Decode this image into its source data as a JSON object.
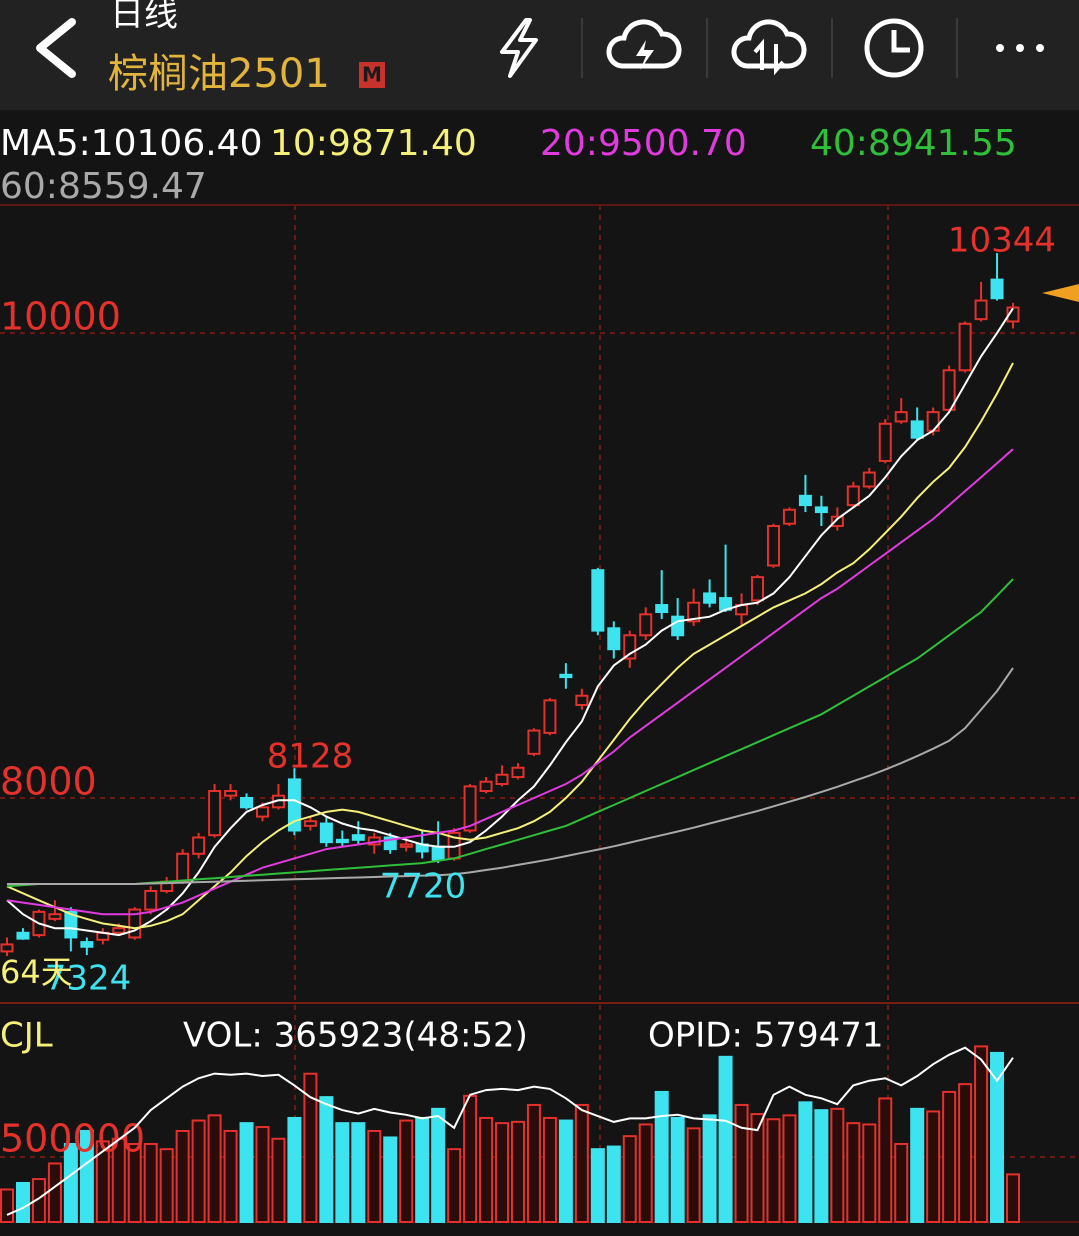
{
  "header": {
    "period": "日线",
    "symbol": "棕榈油2501",
    "badge": "M"
  },
  "chart_data": [
    {
      "type": "candlestick",
      "period_label": "64天",
      "up_color": "#e4312b",
      "down_color": "#3de3ee",
      "ylim": [
        7118,
        10551
      ],
      "yticks": [
        8000,
        10000
      ],
      "grid": true,
      "candles": [
        [
          7340,
          7400,
          7320,
          7370
        ],
        [
          7420,
          7440,
          7390,
          7395
        ],
        [
          7410,
          7520,
          7400,
          7510
        ],
        [
          7480,
          7560,
          7470,
          7500
        ],
        [
          7510,
          7530,
          7340,
          7400
        ],
        [
          7380,
          7400,
          7324,
          7360
        ],
        [
          7390,
          7440,
          7370,
          7420
        ],
        [
          7420,
          7460,
          7410,
          7440
        ],
        [
          7400,
          7530,
          7390,
          7520
        ],
        [
          7520,
          7620,
          7500,
          7600
        ],
        [
          7600,
          7660,
          7590,
          7640
        ],
        [
          7640,
          7780,
          7630,
          7760
        ],
        [
          7760,
          7850,
          7740,
          7830
        ],
        [
          7840,
          8060,
          7830,
          8030
        ],
        [
          8010,
          8060,
          7990,
          8030
        ],
        [
          8000,
          8020,
          7950,
          7960
        ],
        [
          7920,
          7980,
          7900,
          7960
        ],
        [
          7960,
          8060,
          7950,
          8010
        ],
        [
          8080,
          8128,
          7840,
          7860
        ],
        [
          7880,
          7920,
          7860,
          7900
        ],
        [
          7890,
          7920,
          7790,
          7810
        ],
        [
          7820,
          7860,
          7790,
          7810
        ],
        [
          7840,
          7900,
          7800,
          7820
        ],
        [
          7800,
          7850,
          7760,
          7830
        ],
        [
          7830,
          7850,
          7760,
          7780
        ],
        [
          7790,
          7830,
          7770,
          7800
        ],
        [
          7800,
          7860,
          7740,
          7770
        ],
        [
          7790,
          7900,
          7720,
          7735
        ],
        [
          7740,
          7870,
          7730,
          7850
        ],
        [
          7860,
          8060,
          7850,
          8050
        ],
        [
          8030,
          8090,
          8020,
          8070
        ],
        [
          8060,
          8140,
          8050,
          8100
        ],
        [
          8090,
          8150,
          8080,
          8130
        ],
        [
          8190,
          8300,
          8180,
          8290
        ],
        [
          8280,
          8430,
          8270,
          8420
        ],
        [
          8530,
          8580,
          8470,
          8520
        ],
        [
          8400,
          8470,
          8380,
          8440
        ],
        [
          8980,
          8990,
          8700,
          8720
        ],
        [
          8730,
          8760,
          8600,
          8640
        ],
        [
          8600,
          8720,
          8560,
          8700
        ],
        [
          8700,
          8820,
          8680,
          8790
        ],
        [
          8830,
          8980,
          8770,
          8800
        ],
        [
          8780,
          8860,
          8680,
          8700
        ],
        [
          8760,
          8900,
          8740,
          8840
        ],
        [
          8880,
          8940,
          8820,
          8840
        ],
        [
          8860,
          9090,
          8800,
          8810
        ],
        [
          8790,
          8880,
          8740,
          8830
        ],
        [
          8850,
          8960,
          8830,
          8950
        ],
        [
          9000,
          9180,
          8990,
          9170
        ],
        [
          9180,
          9250,
          9170,
          9240
        ],
        [
          9300,
          9390,
          9230,
          9260
        ],
        [
          9250,
          9300,
          9170,
          9230
        ],
        [
          9170,
          9250,
          9150,
          9210
        ],
        [
          9260,
          9360,
          9250,
          9340
        ],
        [
          9340,
          9420,
          9330,
          9400
        ],
        [
          9450,
          9630,
          9440,
          9610
        ],
        [
          9620,
          9720,
          9610,
          9660
        ],
        [
          9620,
          9680,
          9540,
          9550
        ],
        [
          9580,
          9680,
          9560,
          9660
        ],
        [
          9670,
          9860,
          9660,
          9840
        ],
        [
          9840,
          10050,
          9830,
          10040
        ],
        [
          10060,
          10220,
          10050,
          10140
        ],
        [
          10230,
          10344,
          10140,
          10150
        ],
        [
          10050,
          10130,
          10020,
          10110
        ]
      ],
      "series": [
        {
          "name": "MA5",
          "legend_label": "MA5:10106.40",
          "color": "#ffffff",
          "values": [
            7560,
            7500,
            7460,
            7440,
            7440,
            7430,
            7420,
            7410,
            7430,
            7470,
            7520,
            7590,
            7680,
            7790,
            7870,
            7940,
            7970,
            7990,
            7990,
            7960,
            7920,
            7890,
            7870,
            7860,
            7840,
            7820,
            7800,
            7790,
            7790,
            7810,
            7860,
            7920,
            7990,
            8050,
            8140,
            8240,
            8330,
            8480,
            8570,
            8620,
            8660,
            8720,
            8760,
            8770,
            8780,
            8810,
            8830,
            8840,
            8880,
            8950,
            9040,
            9130,
            9200,
            9250,
            9300,
            9380,
            9470,
            9540,
            9580,
            9660,
            9780,
            9900,
            10000,
            10106.4
          ]
        },
        {
          "name": "MA10",
          "legend_label": "10:9871.40",
          "color": "#f5f07a",
          "values": [
            7620,
            7590,
            7560,
            7530,
            7500,
            7480,
            7460,
            7450,
            7440,
            7450,
            7470,
            7500,
            7560,
            7620,
            7680,
            7750,
            7810,
            7860,
            7900,
            7920,
            7940,
            7950,
            7940,
            7920,
            7900,
            7880,
            7860,
            7850,
            7830,
            7820,
            7830,
            7850,
            7870,
            7900,
            7940,
            8000,
            8070,
            8160,
            8250,
            8340,
            8420,
            8490,
            8560,
            8620,
            8660,
            8700,
            8740,
            8780,
            8820,
            8850,
            8880,
            8920,
            8970,
            9010,
            9070,
            9140,
            9210,
            9290,
            9360,
            9420,
            9510,
            9620,
            9740,
            9871.4
          ]
        },
        {
          "name": "MA20",
          "legend_label": "20:9500.70",
          "color": "#e13be0",
          "values": [
            7560,
            7550,
            7540,
            7530,
            7520,
            7510,
            7500,
            7500,
            7500,
            7510,
            7530,
            7550,
            7580,
            7610,
            7640,
            7670,
            7700,
            7720,
            7740,
            7760,
            7780,
            7790,
            7800,
            7810,
            7820,
            7830,
            7840,
            7850,
            7860,
            7880,
            7910,
            7940,
            7970,
            8000,
            8030,
            8060,
            8100,
            8150,
            8200,
            8260,
            8310,
            8360,
            8410,
            8460,
            8510,
            8560,
            8610,
            8660,
            8710,
            8760,
            8810,
            8860,
            8900,
            8950,
            9000,
            9050,
            9100,
            9150,
            9200,
            9260,
            9320,
            9380,
            9440,
            9500.7
          ]
        },
        {
          "name": "MA40",
          "legend_label": "40:8941.55",
          "color": "#2fbf3a",
          "values": [
            7620,
            7625,
            7630,
            7630,
            7630,
            7630,
            7630,
            7630,
            7630,
            7635,
            7640,
            7645,
            7650,
            7655,
            7660,
            7665,
            7670,
            7675,
            7680,
            7685,
            7690,
            7695,
            7700,
            7705,
            7710,
            7715,
            7720,
            7730,
            7740,
            7760,
            7780,
            7800,
            7820,
            7840,
            7860,
            7880,
            7910,
            7940,
            7970,
            8000,
            8030,
            8060,
            8090,
            8120,
            8150,
            8180,
            8210,
            8240,
            8270,
            8300,
            8330,
            8360,
            8400,
            8440,
            8480,
            8520,
            8560,
            8600,
            8650,
            8700,
            8750,
            8800,
            8870,
            8941.55
          ]
        },
        {
          "name": "MA60",
          "legend_label": "60:8559.47",
          "color": "#a9a9a9",
          "values": [
            7630,
            7630,
            7630,
            7630,
            7630,
            7630,
            7630,
            7630,
            7630,
            7632,
            7634,
            7636,
            7638,
            7640,
            7642,
            7644,
            7646,
            7648,
            7650,
            7652,
            7654,
            7656,
            7658,
            7660,
            7662,
            7664,
            7666,
            7668,
            7672,
            7680,
            7690,
            7700,
            7712,
            7724,
            7736,
            7750,
            7764,
            7778,
            7792,
            7808,
            7824,
            7840,
            7856,
            7872,
            7890,
            7908,
            7926,
            7944,
            7964,
            7984,
            8004,
            8026,
            8048,
            8072,
            8096,
            8122,
            8150,
            8180,
            8212,
            8246,
            8300,
            8380,
            8460,
            8559.47
          ]
        }
      ]
    },
    {
      "type": "bar",
      "title": "CJL",
      "vol_label": "VOL: 365923(48:52)",
      "oi_label": "OPID: 579471",
      "ylim": [
        0,
        1630000
      ],
      "yticks": [
        500000
      ],
      "grid": true,
      "values": [
        250000,
        300000,
        330000,
        450000,
        600000,
        700000,
        620000,
        640000,
        600000,
        600000,
        560000,
        700000,
        780000,
        820000,
        700000,
        760000,
        730000,
        640000,
        800000,
        1140000,
        960000,
        760000,
        760000,
        700000,
        650000,
        780000,
        800000,
        870000,
        560000,
        970000,
        800000,
        760000,
        770000,
        900000,
        800000,
        780000,
        900000,
        560000,
        580000,
        660000,
        750000,
        1000000,
        800000,
        720000,
        820000,
        1270000,
        900000,
        830000,
        790000,
        820000,
        920000,
        860000,
        870000,
        760000,
        750000,
        950000,
        600000,
        870000,
        850000,
        1000000,
        1060000,
        1350000,
        1300000,
        365923
      ],
      "y2lim": [
        440000,
        620000
      ],
      "series": [
        {
          "name": "OPID",
          "axis": "y2",
          "color": "#ffffff",
          "values": [
            446000,
            452000,
            460000,
            470000,
            480000,
            490000,
            500000,
            510000,
            520000,
            535000,
            545000,
            555000,
            562000,
            566000,
            565000,
            566000,
            564000,
            565000,
            556000,
            546000,
            540000,
            535000,
            532000,
            536000,
            533000,
            531000,
            528000,
            530000,
            520000,
            548000,
            552000,
            553000,
            552000,
            555000,
            553000,
            545000,
            535000,
            530000,
            525000,
            528000,
            528000,
            530000,
            531000,
            528000,
            527000,
            526000,
            520000,
            518000,
            548000,
            555000,
            548000,
            545000,
            540000,
            556000,
            560000,
            562000,
            556000,
            564000,
            574000,
            582000,
            588000,
            578000,
            560000,
            579471
          ]
        }
      ]
    }
  ]
}
